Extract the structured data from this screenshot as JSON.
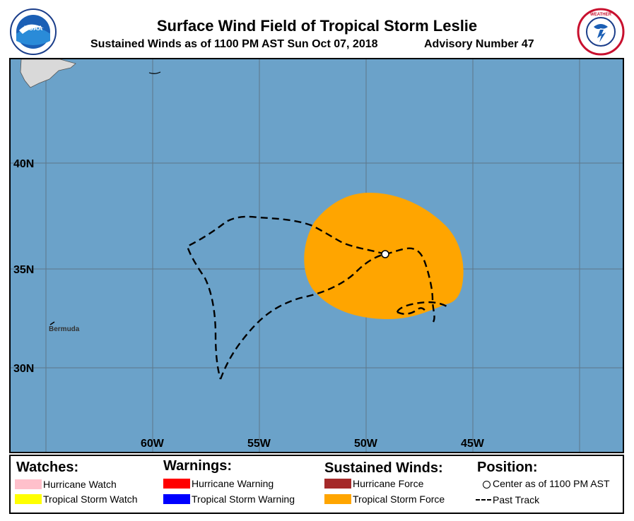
{
  "header": {
    "title": "Surface Wind Field of Tropical Storm Leslie",
    "subtitle": "Sustained Winds as of 1100 PM AST Sun Oct 07, 2018",
    "advisory": "Advisory Number 47"
  },
  "logos": {
    "left": {
      "name": "noaa-logo",
      "text": "NOAA"
    },
    "right": {
      "name": "nws-logo",
      "text": "NATIONAL WEATHER SERVICE"
    }
  },
  "map": {
    "ocean_color": "#6ba2c9",
    "lat_labels": [
      "40N",
      "35N",
      "30N"
    ],
    "lon_labels": [
      "60W",
      "55W",
      "50W",
      "45W"
    ],
    "place_labels": {
      "bermuda": "Bermuda"
    },
    "storm_center": {
      "lon": 49.0,
      "lat": 35.7
    },
    "wind_field_color": "#ffa500"
  },
  "legend": {
    "watches": {
      "heading": "Watches:",
      "items": [
        {
          "label": "Hurricane Watch",
          "color": "#ffc0cb"
        },
        {
          "label": "Tropical Storm Watch",
          "color": "#ffff00"
        }
      ]
    },
    "warnings": {
      "heading": "Warnings:",
      "items": [
        {
          "label": "Hurricane Warning",
          "color": "#ff0000"
        },
        {
          "label": "Tropical Storm Warning",
          "color": "#0000ff"
        }
      ]
    },
    "winds": {
      "heading": "Sustained Winds:",
      "items": [
        {
          "label": "Hurricane Force",
          "color": "#a52a2a"
        },
        {
          "label": "Tropical Storm Force",
          "color": "#ffa500"
        }
      ]
    },
    "position": {
      "heading": "Position:",
      "center_label": "Center as of 1100 PM AST",
      "track_label": "Past Track"
    }
  }
}
